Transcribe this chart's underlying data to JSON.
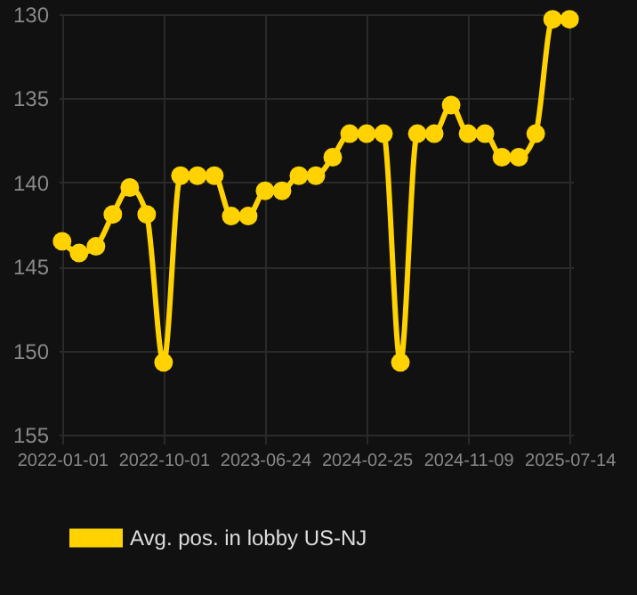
{
  "chart_data": {
    "type": "line",
    "categories": [
      "2022-01-01",
      null,
      null,
      null,
      null,
      null,
      "2022-10-01",
      null,
      null,
      null,
      null,
      null,
      "2023-06-24",
      null,
      null,
      null,
      null,
      null,
      "2024-02-25",
      null,
      null,
      null,
      null,
      null,
      "2024-11-09",
      null,
      null,
      null,
      null,
      null,
      "2025-07-14"
    ],
    "series": [
      {
        "name": "Avg. pos. in lobby US-NJ",
        "color": "#ffd200",
        "values": [
          143.5,
          144.2,
          143.8,
          141.9,
          140.3,
          141.9,
          150.7,
          139.6,
          139.6,
          139.6,
          142.0,
          142.0,
          140.5,
          140.5,
          139.6,
          139.6,
          138.5,
          137.1,
          137.1,
          137.1,
          150.7,
          137.1,
          137.1,
          135.4,
          137.1,
          137.1,
          138.5,
          138.5,
          137.1,
          130.3,
          130.3
        ]
      }
    ],
    "ylim": [
      155,
      130
    ],
    "yticks": [
      130,
      135,
      140,
      145,
      150,
      155
    ],
    "grid": true,
    "legend": "bottom",
    "marker": "circle",
    "line_style": "solid"
  }
}
